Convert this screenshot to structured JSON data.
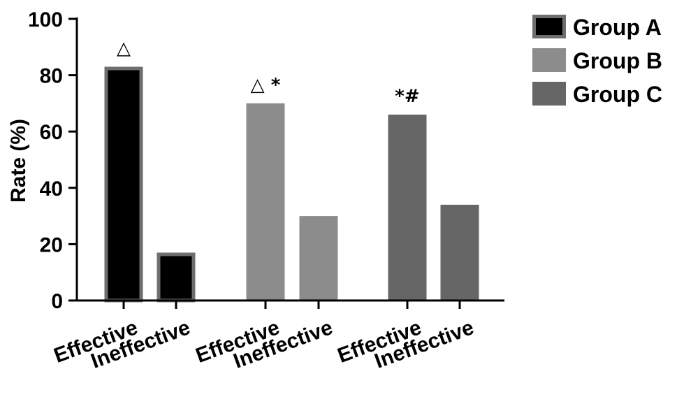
{
  "chart_data": {
    "type": "bar",
    "title": "",
    "xlabel": "",
    "ylabel": "Rate (%)",
    "ylim": [
      0,
      100
    ],
    "yticks": [
      0,
      20,
      40,
      60,
      80,
      100
    ],
    "grid": false,
    "legend_position": "top-right",
    "bars": [
      {
        "group": "Group A",
        "category": "Effective",
        "value": 83,
        "annotation": "△"
      },
      {
        "group": "Group A",
        "category": "Ineffective",
        "value": 17,
        "annotation": ""
      },
      {
        "group": "Group B",
        "category": "Effective",
        "value": 70,
        "annotation": "△ *"
      },
      {
        "group": "Group B",
        "category": "Ineffective",
        "value": 30,
        "annotation": ""
      },
      {
        "group": "Group C",
        "category": "Effective",
        "value": 66,
        "annotation": "*#"
      },
      {
        "group": "Group C",
        "category": "Ineffective",
        "value": 34,
        "annotation": ""
      }
    ],
    "series": [
      {
        "name": "Group A",
        "color": "#000000",
        "border_color": "#6e6e6e"
      },
      {
        "name": "Group B",
        "color": "#8c8c8c",
        "border_color": "#8c8c8c"
      },
      {
        "name": "Group C",
        "color": "#666666",
        "border_color": "#666666"
      }
    ]
  }
}
